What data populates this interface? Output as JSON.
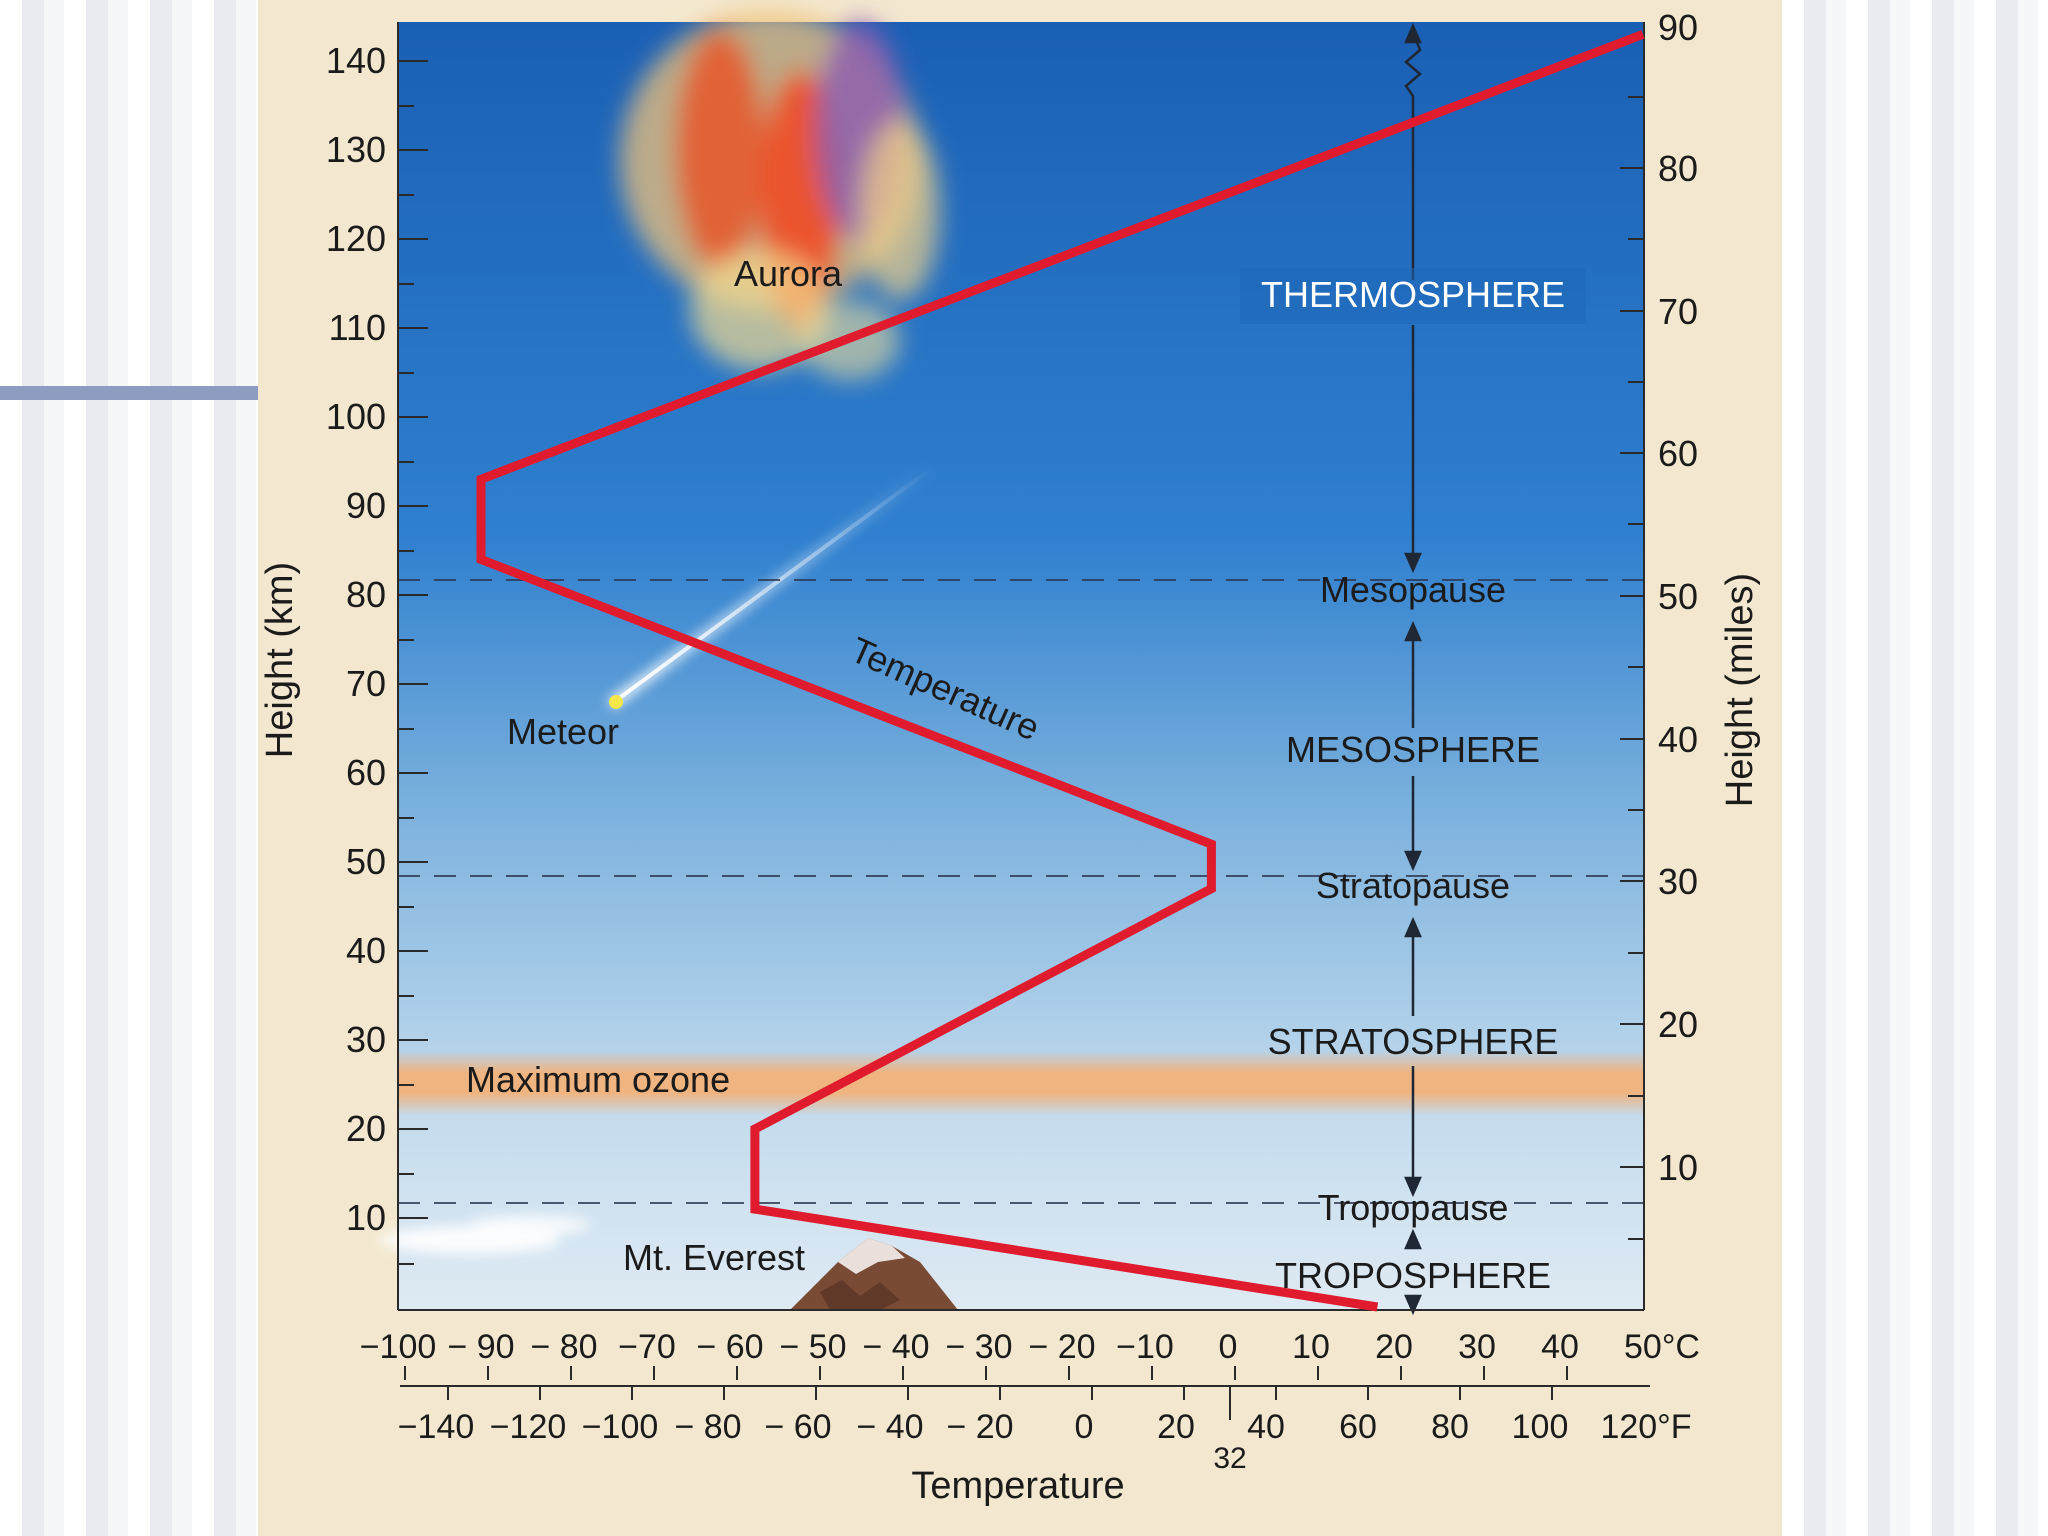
{
  "left_axis": {
    "title": "Height (km)",
    "ticks": [
      "10",
      "20",
      "30",
      "40",
      "50",
      "60",
      "70",
      "80",
      "90",
      "100",
      "110",
      "120",
      "130",
      "140"
    ]
  },
  "right_axis": {
    "title": "Height (miles)",
    "ticks": [
      "10",
      "20",
      "30",
      "40",
      "50",
      "60",
      "70",
      "80",
      "90"
    ]
  },
  "celsius_axis": {
    "ticks": [
      "−100",
      "− 90",
      "− 80",
      "−70",
      "− 60",
      "− 50",
      "− 40",
      "− 30",
      "− 20",
      "−10",
      "0",
      "10",
      "20",
      "30",
      "40",
      "50°C"
    ]
  },
  "fahrenheit_axis": {
    "ticks": [
      "−140",
      "−120",
      "−100",
      "− 80",
      "− 60",
      "− 40",
      "− 20",
      "0",
      "20",
      "40",
      "60",
      "80",
      "100",
      "120°F"
    ],
    "extra_label": "32"
  },
  "x_axis_title": "Temperature",
  "layers": [
    "THERMOSPHERE",
    "Mesopause",
    "MESOSPHERE",
    "Stratopause",
    "STRATOSPHERE",
    "Tropopause",
    "TROPOSPHERE"
  ],
  "annotations": {
    "aurora": "Aurora",
    "meteor": "Meteor",
    "ozone": "Maximum ozone",
    "everest": "Mt. Everest",
    "curve": "Temperature"
  },
  "colors": {
    "curve": "#e01b2e",
    "ozone": "#f2b27a",
    "sky_top": "#1a5fb4",
    "sky_bottom": "#d7e7f2"
  },
  "chart_data": {
    "type": "line",
    "xlabel": "Temperature",
    "ylabel": "Height (km)",
    "x_unit": "°C",
    "ylim": [
      0,
      143
    ],
    "xlim": [
      -100,
      50
    ],
    "series": [
      {
        "name": "Temperature",
        "points": [
          [
            18,
            0
          ],
          [
            -57,
            11
          ],
          [
            -57,
            20
          ],
          [
            -2,
            47
          ],
          [
            -2,
            52
          ],
          [
            -90,
            84
          ],
          [
            -90,
            93
          ],
          [
            50,
            143
          ]
        ]
      }
    ]
  }
}
